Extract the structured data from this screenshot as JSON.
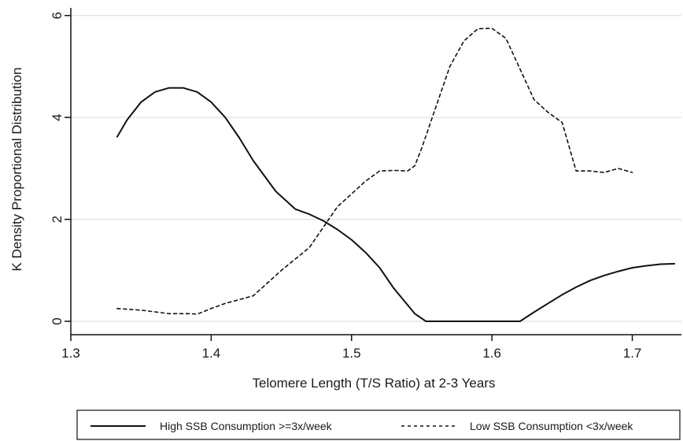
{
  "chart_data": {
    "type": "line",
    "title": "",
    "xlabel": "Telomere Length (T/S Ratio) at 2-3 Years",
    "ylabel": "K Density Proportional Distribution",
    "xlim": [
      1.3,
      1.735
    ],
    "ylim": [
      0,
      6.15
    ],
    "xticks": [
      1.3,
      1.4,
      1.5,
      1.6,
      1.7
    ],
    "xtick_labels": [
      "1.3",
      "1.4",
      "1.5",
      "1.6",
      "1.7"
    ],
    "yticks": [
      0,
      2,
      4,
      6
    ],
    "ytick_labels": [
      "0",
      "2",
      "4",
      "6"
    ],
    "grid": "horizontal",
    "legend_position": "bottom",
    "series": [
      {
        "name": "High SSB Consumption >=3x/week",
        "style": "solid",
        "color": "#111111",
        "x": [
          1.333,
          1.34,
          1.35,
          1.36,
          1.37,
          1.38,
          1.39,
          1.4,
          1.41,
          1.42,
          1.43,
          1.446,
          1.46,
          1.47,
          1.48,
          1.49,
          1.5,
          1.51,
          1.52,
          1.53,
          1.545,
          1.553,
          1.56,
          1.58,
          1.6,
          1.62,
          1.63,
          1.64,
          1.65,
          1.66,
          1.67,
          1.68,
          1.69,
          1.7,
          1.71,
          1.72,
          1.73
        ],
        "y": [
          3.62,
          3.95,
          4.3,
          4.5,
          4.58,
          4.58,
          4.5,
          4.3,
          4.0,
          3.6,
          3.15,
          2.55,
          2.2,
          2.1,
          1.97,
          1.8,
          1.6,
          1.35,
          1.05,
          0.65,
          0.15,
          0.0,
          0.0,
          0.0,
          0.0,
          0.0,
          0.18,
          0.35,
          0.52,
          0.67,
          0.8,
          0.9,
          0.98,
          1.05,
          1.09,
          1.12,
          1.13
        ]
      },
      {
        "name": "Low SSB Consumption <3x/week",
        "style": "dashed",
        "color": "#111111",
        "x": [
          1.333,
          1.35,
          1.37,
          1.385,
          1.39,
          1.4,
          1.41,
          1.43,
          1.44,
          1.45,
          1.47,
          1.48,
          1.49,
          1.5,
          1.51,
          1.52,
          1.53,
          1.54,
          1.545,
          1.55,
          1.56,
          1.57,
          1.58,
          1.59,
          1.6,
          1.61,
          1.62,
          1.63,
          1.64,
          1.65,
          1.66,
          1.67,
          1.68,
          1.69,
          1.7
        ],
        "y": [
          0.25,
          0.22,
          0.15,
          0.15,
          0.14,
          0.25,
          0.35,
          0.5,
          0.75,
          1.0,
          1.45,
          1.85,
          2.25,
          2.5,
          2.75,
          2.95,
          2.96,
          2.95,
          3.05,
          3.4,
          4.2,
          5.0,
          5.5,
          5.74,
          5.75,
          5.55,
          4.95,
          4.35,
          4.1,
          3.9,
          2.95,
          2.95,
          2.92,
          3.0,
          2.92
        ]
      }
    ]
  }
}
